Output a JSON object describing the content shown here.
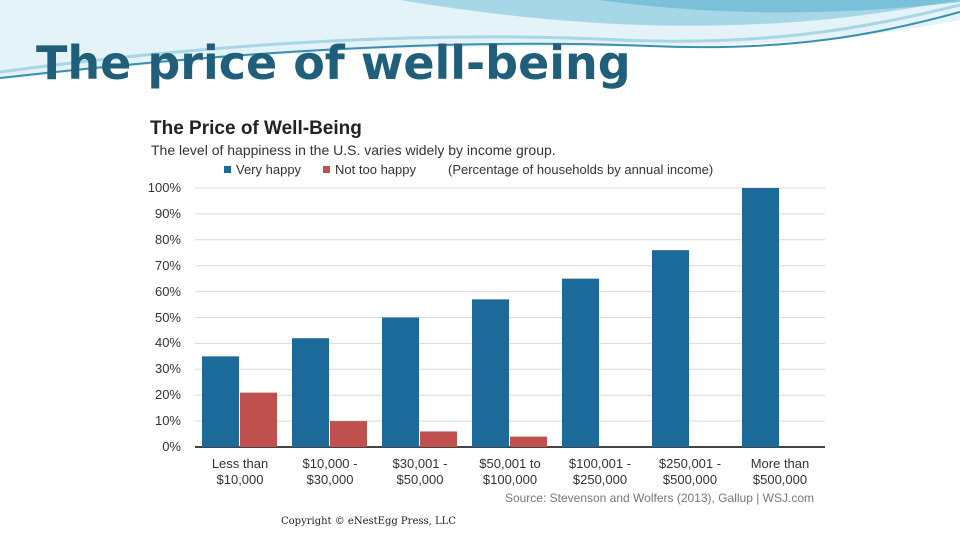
{
  "slide": {
    "title": "The price of well-being",
    "copyright": "Copyright © eNestEgg Press, LLC"
  },
  "colors": {
    "title": "#1f5f79",
    "very_happy": "#1b6a9a",
    "not_too_happy": "#c0504d",
    "decor_dark": "#3a8fb0",
    "decor_light": "#a9d6e6"
  },
  "chart_data": {
    "type": "bar",
    "title": "The Price of Well-Being",
    "subtitle": "The level of happiness in the U.S. varies widely by income group.",
    "legend_note": "(Percentage of households by annual income)",
    "categories": [
      "Less than\n$10,000",
      "$10,000 -\n$30,000",
      "$30,001 -\n$50,000",
      "$50,001 to\n$100,000",
      "$100,001 -\n$250,000",
      "$250,001 -\n$500,000",
      "More than\n$500,000"
    ],
    "series": [
      {
        "name": "Very happy",
        "color": "#1b6a9a",
        "values": [
          35,
          42,
          50,
          57,
          65,
          76,
          100
        ]
      },
      {
        "name": "Not too happy",
        "color": "#c0504d",
        "values": [
          21,
          10,
          6,
          4,
          null,
          null,
          null
        ]
      }
    ],
    "ylim": [
      0,
      100
    ],
    "yticks": [
      "0%",
      "10%",
      "20%",
      "30%",
      "40%",
      "50%",
      "60%",
      "70%",
      "80%",
      "90%",
      "100%"
    ],
    "grid": true,
    "legend_position": "top",
    "source": "Source: Stevenson and Wolfers (2013), Gallup | WSJ.com"
  }
}
